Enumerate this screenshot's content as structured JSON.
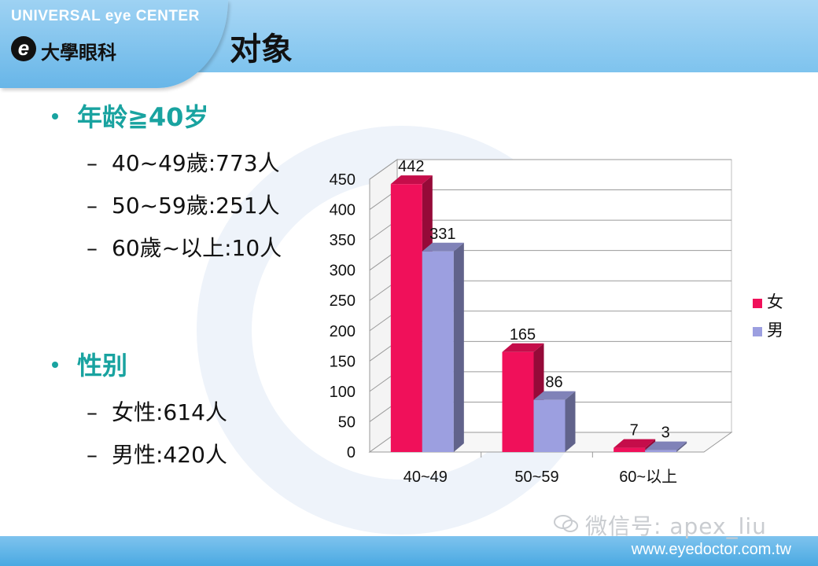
{
  "header": {
    "brand_en": "UNIVERSAL eye CENTER",
    "brand_mark": "e",
    "brand_cn": "大學眼科",
    "title": "对象"
  },
  "content": {
    "age": {
      "heading": "年龄≧40岁",
      "items": [
        "40~49歲:773人",
        "50~59歲:251人",
        "60歲~以上:10人"
      ]
    },
    "gender": {
      "heading": "性别",
      "items": [
        "女性:614人",
        "男性:420人"
      ]
    },
    "dash": "–"
  },
  "footer": {
    "url": "www.eyedoctor.com.tw",
    "watermark": "微信号: apex_liu"
  },
  "chart_data": {
    "type": "bar",
    "categories": [
      "40~49",
      "50~59",
      "60~以上"
    ],
    "series": [
      {
        "name": "女",
        "values": [
          442,
          165,
          7
        ],
        "color": "#f0105a"
      },
      {
        "name": "男",
        "values": [
          331,
          86,
          3
        ],
        "color": "#9c9fe0"
      }
    ],
    "ylim": [
      0,
      450
    ],
    "yticks": [
      0,
      50,
      100,
      150,
      200,
      250,
      300,
      350,
      400,
      450
    ],
    "grid": true,
    "legend": "right",
    "style": "3d-clustered-column"
  }
}
